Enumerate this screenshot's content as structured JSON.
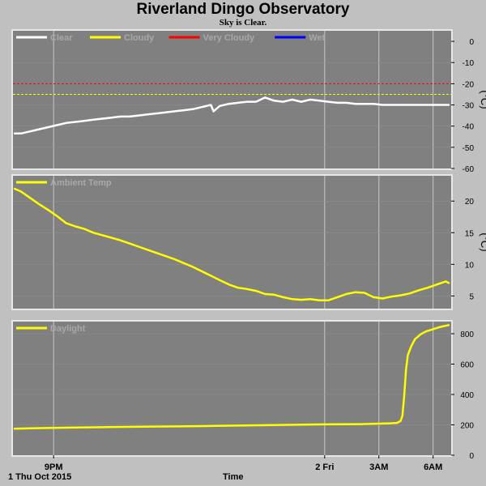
{
  "header": {
    "title": "Riverland Dingo Observatory",
    "subtitle": "Sky is Clear."
  },
  "footer": {
    "date_label": "1 Thu Oct 2015",
    "xlabel": "Time"
  },
  "colors": {
    "background": "#c0c0c0",
    "plot_bg": "#808080",
    "grid": "#c8c8c8",
    "clear": "#ffffff",
    "cloudy": "#ffff00",
    "very_cloudy": "#ff0000",
    "wet": "#0000ff",
    "ambient": "#ffff00",
    "daylight": "#ffff00"
  },
  "chart_data": [
    {
      "type": "line",
      "name": "sky-temperature",
      "ylabel": "(°C)",
      "ylim": [
        -60,
        5
      ],
      "yticks": [
        0,
        -10,
        -20,
        -30,
        -40,
        -50,
        -60
      ],
      "xlim": [
        6.75,
        31.0
      ],
      "xticks": [
        {
          "x": 9,
          "label": "9PM"
        },
        {
          "x": 24,
          "label": "2 Fri"
        },
        {
          "x": 27,
          "label": "3AM"
        },
        {
          "x": 30,
          "label": "6AM"
        }
      ],
      "grid": true,
      "legend": [
        {
          "name": "Clear",
          "color": "#ffffff"
        },
        {
          "name": "Cloudy",
          "color": "#ffff00"
        },
        {
          "name": "Very Cloudy",
          "color": "#ff0000"
        },
        {
          "name": "Wet",
          "color": "#0000ff"
        }
      ],
      "thresholds": [
        {
          "y": -20,
          "color": "#ff0000"
        },
        {
          "y": -25,
          "color": "#ffff00"
        }
      ],
      "series": [
        {
          "name": "Clear",
          "color": "#ffffff",
          "x": [
            6.8,
            7.2,
            7.7,
            8.2,
            8.7,
            9.2,
            9.7,
            10.2,
            10.7,
            11.2,
            11.7,
            12.2,
            12.7,
            13.2,
            13.7,
            14.2,
            14.7,
            15.2,
            15.7,
            16.2,
            16.7,
            17.2,
            17.7,
            17.85,
            18.2,
            18.7,
            19.2,
            19.7,
            20.2,
            20.7,
            21.2,
            21.7,
            22.2,
            22.7,
            23.2,
            23.7,
            24.2,
            24.7,
            25.2,
            25.7,
            26.2,
            26.7,
            27.2,
            27.7,
            28.2,
            28.7,
            29.2,
            29.7,
            30.2,
            30.7,
            30.9
          ],
          "y": [
            -43.5,
            -43.5,
            -42.5,
            -41.5,
            -40.5,
            -39.5,
            -38.5,
            -38.0,
            -37.5,
            -37.0,
            -36.5,
            -36.0,
            -35.5,
            -35.5,
            -35.0,
            -34.5,
            -34.0,
            -33.5,
            -33.0,
            -32.5,
            -32.0,
            -31.0,
            -30.0,
            -33.0,
            -30.5,
            -29.5,
            -29.0,
            -28.5,
            -28.5,
            -26.5,
            -28.0,
            -28.5,
            -27.5,
            -28.5,
            -27.5,
            -28.0,
            -28.5,
            -29.0,
            -29.0,
            -29.5,
            -29.5,
            -29.5,
            -30.0,
            -30.0,
            -30.0,
            -30.0,
            -30.0,
            -30.0,
            -30.0,
            -30.0,
            -30.0
          ]
        }
      ]
    },
    {
      "type": "line",
      "name": "ambient-temperature",
      "ylabel": "(°C)",
      "ylim": [
        3,
        24
      ],
      "yticks": [
        20,
        15,
        10,
        5
      ],
      "xlim": [
        6.75,
        31.0
      ],
      "xticks": [
        {
          "x": 9,
          "label": "9PM"
        },
        {
          "x": 24,
          "label": "2 Fri"
        },
        {
          "x": 27,
          "label": "3AM"
        },
        {
          "x": 30,
          "label": "6AM"
        }
      ],
      "grid": true,
      "legend": [
        {
          "name": "Ambient Temp",
          "color": "#ffff00"
        }
      ],
      "series": [
        {
          "name": "Ambient Temp",
          "color": "#ffff00",
          "x": [
            6.8,
            7.2,
            7.7,
            8.2,
            8.7,
            9.2,
            9.7,
            10.2,
            10.7,
            11.2,
            11.7,
            12.2,
            12.7,
            13.2,
            13.7,
            14.2,
            14.7,
            15.2,
            15.7,
            16.2,
            16.7,
            17.2,
            17.7,
            18.2,
            18.7,
            19.2,
            19.7,
            20.2,
            20.7,
            21.2,
            21.7,
            22.2,
            22.7,
            23.2,
            23.7,
            24.2,
            24.7,
            25.2,
            25.7,
            26.2,
            26.7,
            27.2,
            27.7,
            28.2,
            28.7,
            29.2,
            29.7,
            30.2,
            30.7,
            30.9
          ],
          "y": [
            22.0,
            21.5,
            20.5,
            19.5,
            18.6,
            17.6,
            16.5,
            16.0,
            15.6,
            15.0,
            14.6,
            14.2,
            13.8,
            13.3,
            12.8,
            12.3,
            11.8,
            11.3,
            10.8,
            10.2,
            9.6,
            8.9,
            8.2,
            7.5,
            6.8,
            6.3,
            6.1,
            5.8,
            5.3,
            5.2,
            4.8,
            4.5,
            4.4,
            4.5,
            4.3,
            4.3,
            4.8,
            5.3,
            5.6,
            5.5,
            4.8,
            4.6,
            4.9,
            5.1,
            5.4,
            5.9,
            6.3,
            6.8,
            7.3,
            7.0
          ]
        }
      ]
    },
    {
      "type": "line",
      "name": "daylight",
      "ylabel": "",
      "ylim": [
        0,
        880
      ],
      "yticks": [
        800,
        600,
        400,
        200,
        0
      ],
      "xlim": [
        6.75,
        31.0
      ],
      "xticks": [
        {
          "x": 9,
          "label": "9PM"
        },
        {
          "x": 24,
          "label": "2 Fri"
        },
        {
          "x": 27,
          "label": "3AM"
        },
        {
          "x": 30,
          "label": "6AM"
        }
      ],
      "grid": true,
      "legend": [
        {
          "name": "Daylight",
          "color": "#ffff00"
        }
      ],
      "series": [
        {
          "name": "Daylight",
          "color": "#ffff00",
          "x": [
            6.8,
            8.0,
            10.0,
            12.0,
            14.0,
            16.0,
            18.0,
            20.0,
            22.0,
            24.0,
            26.0,
            27.0,
            27.6,
            28.0,
            28.2,
            28.3,
            28.4,
            28.5,
            28.6,
            28.8,
            29.0,
            29.3,
            29.6,
            30.0,
            30.4,
            30.8,
            30.9
          ],
          "y": [
            175,
            178,
            182,
            185,
            188,
            190,
            193,
            197,
            200,
            203,
            205,
            208,
            210,
            213,
            225,
            260,
            390,
            560,
            660,
            720,
            765,
            795,
            815,
            830,
            845,
            855,
            858
          ]
        }
      ]
    }
  ]
}
